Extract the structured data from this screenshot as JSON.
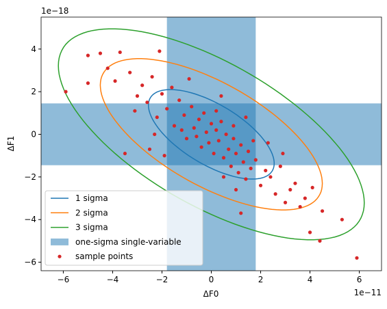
{
  "chart_data": {
    "type": "ellipse-scatter",
    "x_label": "ΔF0",
    "y_label": "ΔF1",
    "x_offset_label": "1e−11",
    "y_offset_label": "1e−18",
    "xlim": [
      -6.9,
      6.9
    ],
    "ylim": [
      -6.4,
      5.5
    ],
    "xticks": [
      {
        "value": -6,
        "label": "−6"
      },
      {
        "value": -4,
        "label": "−4"
      },
      {
        "value": -2,
        "label": "−2"
      },
      0,
      2,
      4,
      6
    ],
    "yticks": [
      {
        "value": -6,
        "label": "−6"
      },
      {
        "value": -4,
        "label": "−4"
      },
      {
        "value": -2,
        "label": "−2"
      },
      0,
      2,
      4
    ],
    "legend": "lower left",
    "series": [
      {
        "name": "1 sigma",
        "type": "ellipse",
        "color": "#1f77b4",
        "x_extent": 2.55,
        "y_extent": 2.1,
        "rho": -0.65
      },
      {
        "name": "2 sigma",
        "type": "ellipse",
        "color": "#ff7f0e",
        "x_extent": 4.5,
        "y_extent": 3.55,
        "rho": -0.65
      },
      {
        "name": "3 sigma",
        "type": "ellipse",
        "color": "#2ca02c",
        "x_extent": 6.2,
        "y_extent": 4.95,
        "rho": -0.65
      },
      {
        "name": "one-sigma single-variable",
        "type": "band",
        "color": "#1f77b4",
        "x_range": [
          -1.8,
          1.8
        ],
        "y_range": [
          -1.45,
          1.45
        ]
      },
      {
        "name": "sample points",
        "type": "scatter",
        "color": "#d62728",
        "x": [
          -5.9,
          -5.0,
          -4.5,
          -3.7,
          -2.1,
          -5.0,
          -3.5,
          -2.5,
          5.9,
          5.3,
          4.4,
          4.0,
          1.2,
          -4.2,
          -3.9,
          -3.3,
          -3.0,
          -2.8,
          -2.6,
          -2.4,
          -2.2,
          -2.0,
          -1.8,
          -1.6,
          -1.5,
          -1.3,
          -1.1,
          -1.0,
          -0.8,
          -0.7,
          -0.5,
          -0.4,
          -0.3,
          -0.2,
          -0.1,
          0.0,
          0.1,
          0.2,
          0.3,
          0.4,
          0.5,
          0.6,
          0.7,
          0.8,
          0.9,
          1.0,
          1.1,
          1.2,
          1.3,
          1.4,
          1.5,
          1.6,
          1.8,
          2.0,
          2.2,
          2.4,
          2.6,
          2.8,
          3.0,
          3.2,
          3.4,
          3.6,
          3.8,
          4.1,
          4.5,
          -1.2,
          -0.6,
          0.2,
          0.9,
          1.7,
          -2.3,
          -1.9,
          0.5,
          1.0,
          2.3,
          -0.9,
          0.4,
          1.4,
          -3.1,
          2.9
        ],
        "y": [
          2.0,
          3.7,
          3.8,
          3.85,
          3.9,
          2.4,
          -0.9,
          -0.7,
          -5.8,
          -4.0,
          -5.0,
          -4.6,
          -3.7,
          3.1,
          2.5,
          2.9,
          1.8,
          2.3,
          1.5,
          2.7,
          0.8,
          1.9,
          1.2,
          2.2,
          0.4,
          1.6,
          0.9,
          -0.2,
          1.3,
          0.3,
          0.7,
          -0.6,
          1.0,
          0.1,
          -0.4,
          0.5,
          -0.9,
          0.2,
          -0.3,
          0.6,
          -1.1,
          0.0,
          -0.7,
          -1.5,
          -0.2,
          -0.9,
          -1.8,
          -0.5,
          -1.3,
          -2.1,
          -0.8,
          -1.6,
          -1.2,
          -2.4,
          -1.7,
          -2.0,
          -2.8,
          -1.5,
          -3.2,
          -2.6,
          -2.3,
          -3.4,
          -3.0,
          -2.5,
          -3.6,
          0.2,
          -0.1,
          1.1,
          0.4,
          -0.3,
          0.0,
          -1.0,
          -2.0,
          -2.6,
          -0.4,
          2.6,
          1.8,
          0.8,
          1.1,
          -0.9
        ]
      }
    ]
  }
}
